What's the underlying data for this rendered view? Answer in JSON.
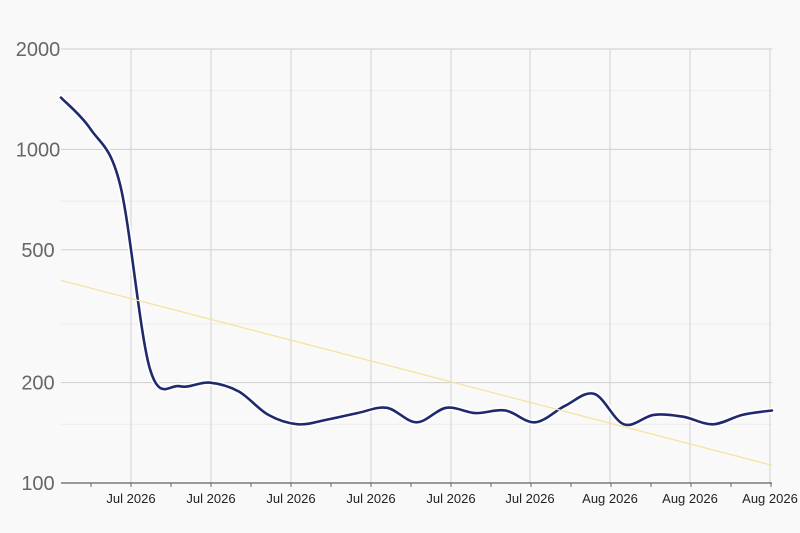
{
  "chart_data": {
    "type": "line",
    "title": "",
    "xlabel": "",
    "ylabel": "",
    "y_scale": "log",
    "ylim": [
      100,
      2000
    ],
    "y_ticks": [
      100,
      200,
      500,
      1000,
      2000
    ],
    "y_tick_labels": [
      "100",
      "200",
      "500",
      "1000",
      "2000"
    ],
    "x_tick_labels": [
      "Jul 2026",
      "Jul 2026",
      "Jul 2026",
      "Jul 2026",
      "Jul 2026",
      "Jul 2026",
      "Aug 2026",
      "Aug 2026",
      "Aug 2026"
    ],
    "grid": true,
    "legend": "none",
    "series": [
      {
        "style": "smooth-line",
        "color": "#1f2a6e",
        "x": [
          "2026-06-26",
          "2026-06-28",
          "2026-06-30",
          "2026-07-02",
          "2026-07-04",
          "2026-07-06",
          "2026-07-08",
          "2026-07-10",
          "2026-07-12",
          "2026-07-14",
          "2026-07-16",
          "2026-07-18",
          "2026-07-20",
          "2026-07-22",
          "2026-07-24",
          "2026-07-26",
          "2026-07-28",
          "2026-07-30",
          "2026-08-01",
          "2026-08-03",
          "2026-08-05",
          "2026-08-07",
          "2026-08-09",
          "2026-08-11",
          "2026-08-13"
        ],
        "y": [
          1430,
          1150,
          780,
          220,
          195,
          200,
          188,
          160,
          150,
          155,
          162,
          168,
          152,
          168,
          162,
          165,
          152,
          170,
          185,
          150,
          160,
          158,
          150,
          160,
          165
        ]
      },
      {
        "style": "trend-line",
        "color": "#f5e3a0",
        "x": [
          "2026-06-26",
          "2026-08-13"
        ],
        "y": [
          405,
          113
        ]
      }
    ]
  }
}
